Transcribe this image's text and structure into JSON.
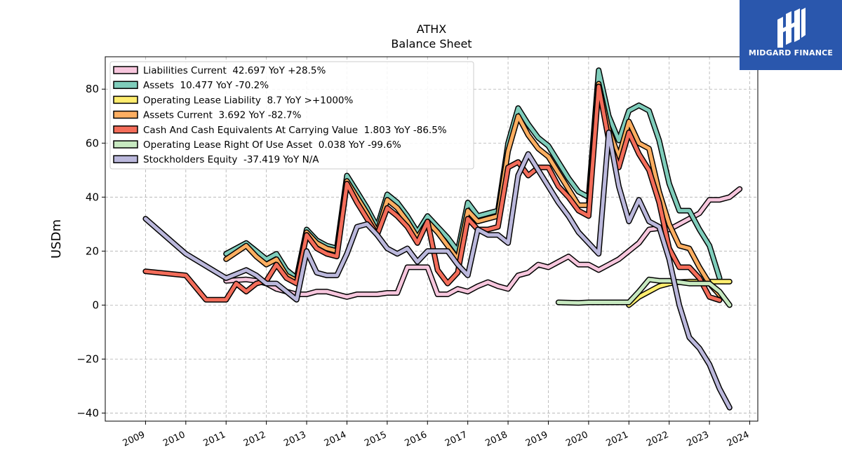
{
  "chart_data": {
    "type": "line",
    "title": "ATHX",
    "subtitle": "Balance  Sheet",
    "ylabel": "USDm",
    "xlabel": "",
    "ylim": [
      -43,
      92
    ],
    "xlim": [
      2008.0,
      2024.2
    ],
    "yticks": [
      -40,
      -20,
      0,
      20,
      40,
      60,
      80
    ],
    "ytick_labels": [
      "−40",
      "−20",
      "0",
      "20",
      "40",
      "60",
      "80"
    ],
    "xticks": [
      2009,
      2010,
      2011,
      2012,
      2013,
      2014,
      2015,
      2016,
      2017,
      2018,
      2019,
      2020,
      2021,
      2022,
      2023,
      2024
    ],
    "xtick_labels": [
      "2009",
      "2010",
      "2011",
      "2012",
      "2013",
      "2014",
      "2015",
      "2016",
      "2017",
      "2018",
      "2019",
      "2020",
      "2021",
      "2022",
      "2023",
      "2024"
    ],
    "grid": true,
    "legend_position": "top-left",
    "series": [
      {
        "name": "Liabilities Current  42.697 YoY +28.5%",
        "color": "#f7c6dd",
        "points": [
          [
            2011.0,
            9
          ],
          [
            2011.5,
            9.5
          ],
          [
            2011.75,
            9
          ],
          [
            2012.0,
            8
          ],
          [
            2012.25,
            6
          ],
          [
            2012.5,
            5
          ],
          [
            2012.75,
            4
          ],
          [
            2013.0,
            4
          ],
          [
            2013.25,
            5
          ],
          [
            2013.5,
            5
          ],
          [
            2013.75,
            4
          ],
          [
            2014.0,
            3
          ],
          [
            2014.25,
            4
          ],
          [
            2014.5,
            4
          ],
          [
            2014.75,
            4
          ],
          [
            2015.0,
            4.5
          ],
          [
            2015.25,
            4.5
          ],
          [
            2015.5,
            14
          ],
          [
            2015.75,
            14
          ],
          [
            2016.0,
            14
          ],
          [
            2016.25,
            4
          ],
          [
            2016.5,
            4
          ],
          [
            2016.75,
            6
          ],
          [
            2017.0,
            5
          ],
          [
            2017.25,
            7
          ],
          [
            2017.5,
            8.5
          ],
          [
            2017.75,
            7
          ],
          [
            2018.0,
            6
          ],
          [
            2018.25,
            11
          ],
          [
            2018.5,
            12
          ],
          [
            2018.75,
            15
          ],
          [
            2019.0,
            14
          ],
          [
            2019.25,
            16
          ],
          [
            2019.5,
            18
          ],
          [
            2019.75,
            15
          ],
          [
            2020.0,
            15
          ],
          [
            2020.25,
            13
          ],
          [
            2020.5,
            15
          ],
          [
            2020.75,
            17
          ],
          [
            2021.0,
            20
          ],
          [
            2021.25,
            23
          ],
          [
            2021.5,
            28
          ],
          [
            2021.75,
            28.5
          ],
          [
            2022.0,
            28
          ],
          [
            2022.25,
            30
          ],
          [
            2022.5,
            32
          ],
          [
            2022.75,
            34
          ],
          [
            2023.0,
            39
          ],
          [
            2023.25,
            39
          ],
          [
            2023.5,
            40
          ],
          [
            2023.75,
            43
          ]
        ]
      },
      {
        "name": "Assets  10.477 YoY -70.2%",
        "color": "#7fcdbb",
        "points": [
          [
            2011.0,
            19
          ],
          [
            2011.5,
            23
          ],
          [
            2011.75,
            20
          ],
          [
            2012.0,
            17
          ],
          [
            2012.25,
            19
          ],
          [
            2012.5,
            13
          ],
          [
            2012.75,
            10
          ],
          [
            2013.0,
            28
          ],
          [
            2013.25,
            24
          ],
          [
            2013.5,
            22
          ],
          [
            2013.75,
            21
          ],
          [
            2014.0,
            48
          ],
          [
            2014.25,
            42
          ],
          [
            2014.5,
            36
          ],
          [
            2014.75,
            29
          ],
          [
            2015.0,
            41
          ],
          [
            2015.25,
            38
          ],
          [
            2015.5,
            33
          ],
          [
            2015.75,
            27
          ],
          [
            2016.0,
            33
          ],
          [
            2016.25,
            29
          ],
          [
            2016.5,
            25
          ],
          [
            2016.75,
            20
          ],
          [
            2017.0,
            38
          ],
          [
            2017.25,
            33
          ],
          [
            2017.5,
            34
          ],
          [
            2017.75,
            35
          ],
          [
            2018.0,
            60
          ],
          [
            2018.25,
            73
          ],
          [
            2018.5,
            67
          ],
          [
            2018.75,
            62
          ],
          [
            2019.0,
            59
          ],
          [
            2019.25,
            53
          ],
          [
            2019.5,
            47
          ],
          [
            2019.75,
            42
          ],
          [
            2020.0,
            40
          ],
          [
            2020.25,
            87
          ],
          [
            2020.5,
            70
          ],
          [
            2020.75,
            61
          ],
          [
            2021.0,
            72
          ],
          [
            2021.25,
            74
          ],
          [
            2021.5,
            72
          ],
          [
            2021.75,
            61
          ],
          [
            2022.0,
            45
          ],
          [
            2022.25,
            35
          ],
          [
            2022.5,
            35
          ],
          [
            2022.75,
            28
          ],
          [
            2023.0,
            22
          ],
          [
            2023.25,
            10
          ]
        ]
      },
      {
        "name": "Operating Lease Liability  8.7 YoY >+1000%",
        "color": "#ffed6f",
        "points": [
          [
            2021.0,
            0
          ],
          [
            2021.25,
            3
          ],
          [
            2021.5,
            5
          ],
          [
            2021.75,
            7
          ],
          [
            2022.0,
            8
          ],
          [
            2022.25,
            8.5
          ],
          [
            2022.5,
            8.7
          ],
          [
            2022.75,
            8.7
          ],
          [
            2023.0,
            8.7
          ],
          [
            2023.25,
            8.7
          ],
          [
            2023.5,
            8.7
          ]
        ]
      },
      {
        "name": "Assets Current  3.692 YoY -82.7%",
        "color": "#fdae61",
        "points": [
          [
            2011.0,
            17
          ],
          [
            2011.5,
            22
          ],
          [
            2011.75,
            18
          ],
          [
            2012.0,
            15
          ],
          [
            2012.25,
            17
          ],
          [
            2012.5,
            11
          ],
          [
            2012.75,
            9
          ],
          [
            2013.0,
            27
          ],
          [
            2013.25,
            23
          ],
          [
            2013.5,
            21
          ],
          [
            2013.75,
            20
          ],
          [
            2014.0,
            46
          ],
          [
            2014.25,
            40
          ],
          [
            2014.5,
            34
          ],
          [
            2014.75,
            27
          ],
          [
            2015.0,
            39
          ],
          [
            2015.25,
            36
          ],
          [
            2015.5,
            31
          ],
          [
            2015.75,
            25
          ],
          [
            2016.0,
            31
          ],
          [
            2016.25,
            27
          ],
          [
            2016.5,
            22
          ],
          [
            2016.75,
            17
          ],
          [
            2017.0,
            35
          ],
          [
            2017.25,
            31
          ],
          [
            2017.5,
            32
          ],
          [
            2017.75,
            33
          ],
          [
            2018.0,
            57
          ],
          [
            2018.25,
            70
          ],
          [
            2018.5,
            63
          ],
          [
            2018.75,
            58
          ],
          [
            2019.0,
            55
          ],
          [
            2019.25,
            49
          ],
          [
            2019.5,
            43
          ],
          [
            2019.75,
            37
          ],
          [
            2020.0,
            37
          ],
          [
            2020.25,
            82
          ],
          [
            2020.5,
            65
          ],
          [
            2020.75,
            55
          ],
          [
            2021.0,
            68
          ],
          [
            2021.25,
            60
          ],
          [
            2021.5,
            58
          ],
          [
            2021.75,
            42
          ],
          [
            2022.0,
            30
          ],
          [
            2022.25,
            22
          ],
          [
            2022.5,
            21
          ],
          [
            2022.75,
            14
          ],
          [
            2023.0,
            8
          ],
          [
            2023.25,
            3.7
          ]
        ]
      },
      {
        "name": "Cash And Cash Equivalents At Carrying Value  1.803 YoY -86.5%",
        "color": "#f46d5a",
        "points": [
          [
            2009.0,
            12.5
          ],
          [
            2010.0,
            11
          ],
          [
            2010.5,
            2
          ],
          [
            2011.0,
            2
          ],
          [
            2011.25,
            8
          ],
          [
            2011.5,
            5
          ],
          [
            2011.75,
            8
          ],
          [
            2012.0,
            9
          ],
          [
            2012.25,
            15
          ],
          [
            2012.5,
            10
          ],
          [
            2012.75,
            8
          ],
          [
            2013.0,
            26
          ],
          [
            2013.25,
            21
          ],
          [
            2013.5,
            19
          ],
          [
            2013.75,
            18
          ],
          [
            2014.0,
            45
          ],
          [
            2014.25,
            38
          ],
          [
            2014.5,
            32
          ],
          [
            2014.75,
            26
          ],
          [
            2015.0,
            36
          ],
          [
            2015.25,
            33
          ],
          [
            2015.5,
            29
          ],
          [
            2015.75,
            23
          ],
          [
            2016.0,
            31
          ],
          [
            2016.25,
            13
          ],
          [
            2016.5,
            8
          ],
          [
            2016.75,
            12
          ],
          [
            2017.0,
            32
          ],
          [
            2017.25,
            28
          ],
          [
            2017.5,
            28
          ],
          [
            2017.75,
            29
          ],
          [
            2018.0,
            51
          ],
          [
            2018.25,
            53
          ],
          [
            2018.5,
            48
          ],
          [
            2018.75,
            51
          ],
          [
            2019.0,
            51
          ],
          [
            2019.25,
            44
          ],
          [
            2019.5,
            40
          ],
          [
            2019.75,
            35
          ],
          [
            2020.0,
            33
          ],
          [
            2020.25,
            81
          ],
          [
            2020.5,
            61
          ],
          [
            2020.75,
            51
          ],
          [
            2021.0,
            64
          ],
          [
            2021.25,
            56
          ],
          [
            2021.5,
            50
          ],
          [
            2021.75,
            38
          ],
          [
            2022.0,
            21
          ],
          [
            2022.25,
            14
          ],
          [
            2022.5,
            14
          ],
          [
            2022.75,
            10
          ],
          [
            2023.0,
            3
          ],
          [
            2023.25,
            1.8
          ]
        ]
      },
      {
        "name": "Operating Lease Right Of Use Asset  0.038 YoY -99.6%",
        "color": "#c7e9c0",
        "points": [
          [
            2019.25,
            1
          ],
          [
            2019.75,
            0.8
          ],
          [
            2020.0,
            1
          ],
          [
            2021.0,
            1
          ],
          [
            2021.25,
            5
          ],
          [
            2021.5,
            9.5
          ],
          [
            2021.75,
            9
          ],
          [
            2022.0,
            9
          ],
          [
            2022.25,
            8.5
          ],
          [
            2022.5,
            8
          ],
          [
            2022.75,
            8
          ],
          [
            2023.0,
            8
          ],
          [
            2023.25,
            5
          ],
          [
            2023.5,
            0
          ]
        ]
      },
      {
        "name": "Stockholders Equity  -37.419 YoY N/A",
        "color": "#bbb8dc",
        "points": [
          [
            2009.0,
            32
          ],
          [
            2010.0,
            19
          ],
          [
            2011.0,
            10
          ],
          [
            2011.5,
            13
          ],
          [
            2011.75,
            11
          ],
          [
            2012.0,
            8
          ],
          [
            2012.25,
            8
          ],
          [
            2012.5,
            5
          ],
          [
            2012.75,
            2
          ],
          [
            2013.0,
            20
          ],
          [
            2013.25,
            12
          ],
          [
            2013.5,
            11
          ],
          [
            2013.75,
            11
          ],
          [
            2014.0,
            19
          ],
          [
            2014.25,
            29
          ],
          [
            2014.5,
            30
          ],
          [
            2014.75,
            26
          ],
          [
            2015.0,
            21
          ],
          [
            2015.25,
            19
          ],
          [
            2015.5,
            21
          ],
          [
            2015.75,
            16
          ],
          [
            2016.0,
            20
          ],
          [
            2016.25,
            20
          ],
          [
            2016.5,
            20
          ],
          [
            2016.75,
            15
          ],
          [
            2017.0,
            11
          ],
          [
            2017.25,
            28
          ],
          [
            2017.5,
            26
          ],
          [
            2017.75,
            26
          ],
          [
            2018.0,
            23
          ],
          [
            2018.25,
            48
          ],
          [
            2018.5,
            56
          ],
          [
            2018.75,
            50
          ],
          [
            2019.0,
            44
          ],
          [
            2019.25,
            38
          ],
          [
            2019.5,
            33
          ],
          [
            2019.75,
            27
          ],
          [
            2020.0,
            23
          ],
          [
            2020.25,
            19
          ],
          [
            2020.5,
            64
          ],
          [
            2020.75,
            44
          ],
          [
            2021.0,
            31
          ],
          [
            2021.25,
            39
          ],
          [
            2021.5,
            31
          ],
          [
            2021.75,
            29
          ],
          [
            2022.0,
            17
          ],
          [
            2022.25,
            0
          ],
          [
            2022.5,
            -12
          ],
          [
            2022.75,
            -16
          ],
          [
            2023.0,
            -22
          ],
          [
            2023.25,
            -31
          ],
          [
            2023.5,
            -38
          ]
        ]
      }
    ]
  },
  "logo": {
    "text": "MIDGARD FINANCE",
    "background": "#2a57ad"
  }
}
